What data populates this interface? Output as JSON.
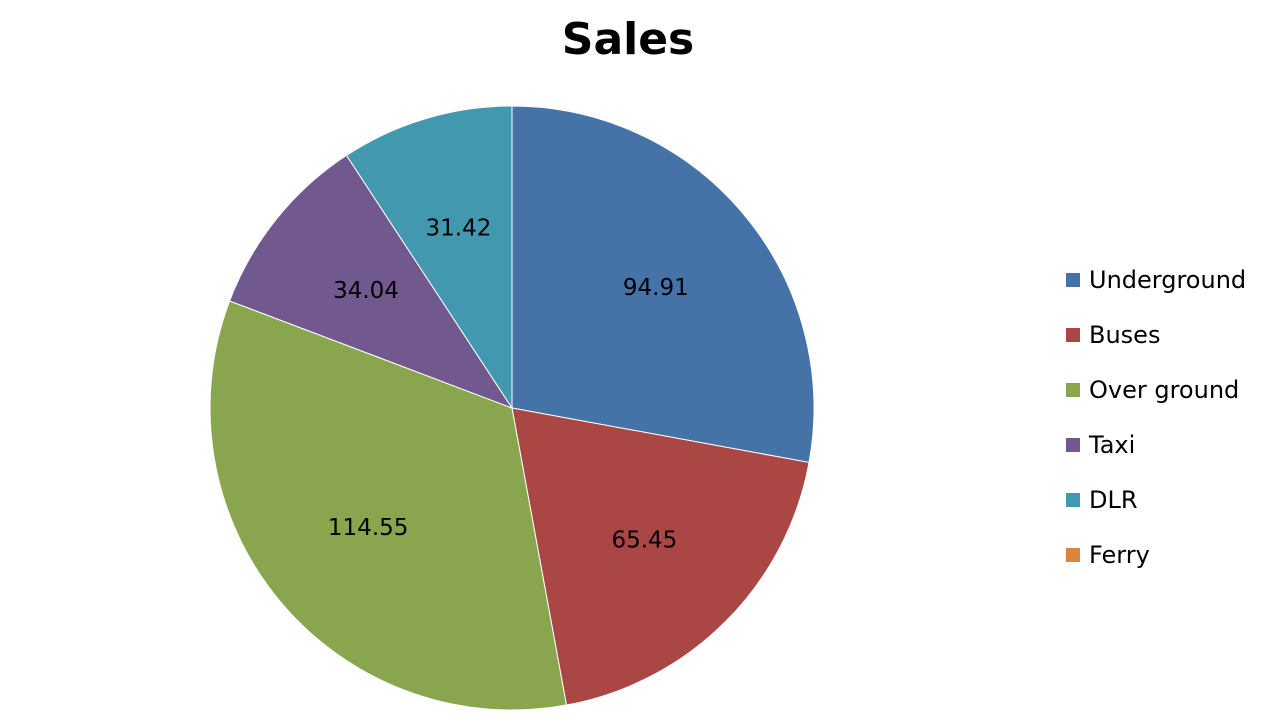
{
  "chart_data": {
    "type": "pie",
    "title": "Sales",
    "legend_position": "right",
    "slices": [
      {
        "label": "Underground",
        "value": 94.91,
        "value_label": "94.91",
        "color": "#4572A7"
      },
      {
        "label": "Buses",
        "value": 65.45,
        "value_label": "65.45",
        "color": "#AA4643"
      },
      {
        "label": "Over ground",
        "value": 114.55,
        "value_label": "114.55",
        "color": "#89A54E"
      },
      {
        "label": "Taxi",
        "value": 34.04,
        "value_label": "34.04",
        "color": "#71588F"
      },
      {
        "label": "DLR",
        "value": 31.42,
        "value_label": "31.42",
        "color": "#4198AF"
      },
      {
        "label": "Ferry",
        "value": 0,
        "value_label": "",
        "color": "#DB843D"
      }
    ]
  }
}
